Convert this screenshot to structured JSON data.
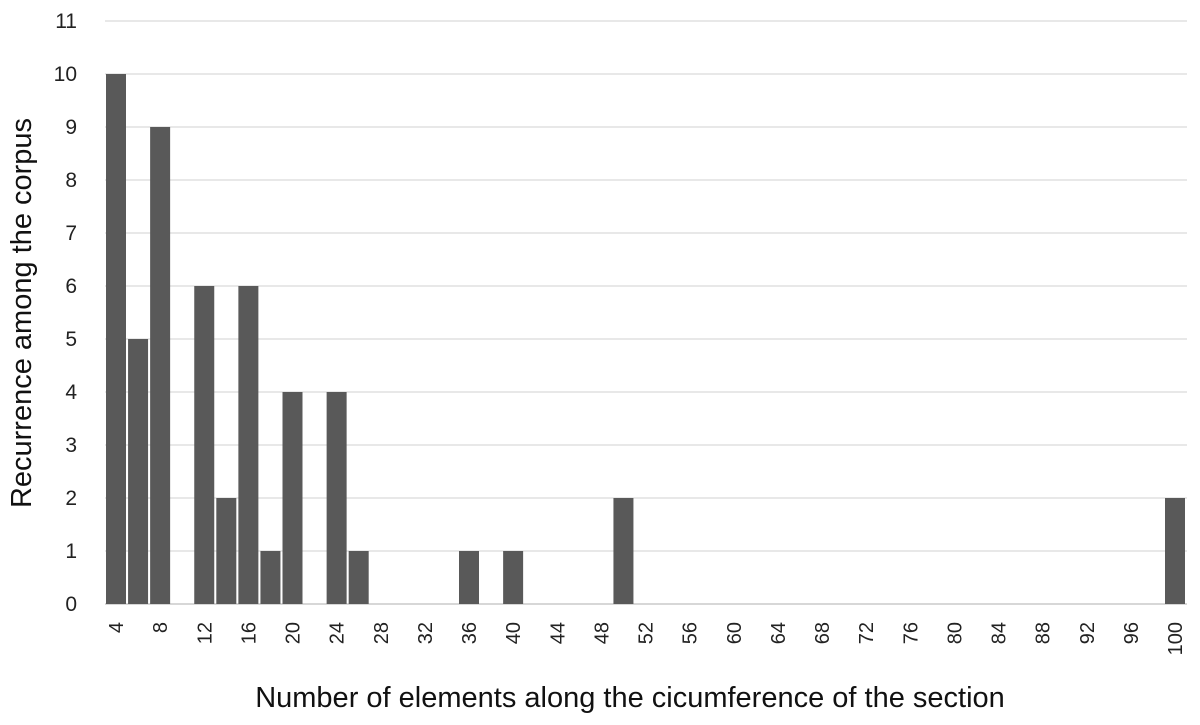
{
  "chart_data": {
    "type": "bar",
    "title": "",
    "xlabel": "Number of elements along the cicumference of the section",
    "ylabel": "Recurrence among the corpus",
    "ylim": [
      0,
      11
    ],
    "yticks": [
      0,
      1,
      2,
      3,
      4,
      5,
      6,
      7,
      8,
      9,
      10,
      11
    ],
    "xtick_labels": [
      "4",
      "8",
      "12",
      "16",
      "20",
      "24",
      "28",
      "32",
      "36",
      "40",
      "44",
      "48",
      "52",
      "56",
      "60",
      "64",
      "68",
      "72",
      "76",
      "80",
      "84",
      "88",
      "92",
      "96",
      "100"
    ],
    "grid": true,
    "bar_color": "#595959",
    "grid_color": "#d9d9d9",
    "x": [
      4,
      6,
      8,
      12,
      14,
      16,
      18,
      20,
      24,
      26,
      36,
      40,
      50,
      100
    ],
    "values": [
      10,
      5,
      9,
      6,
      2,
      6,
      1,
      4,
      4,
      1,
      1,
      1,
      2,
      2
    ]
  }
}
